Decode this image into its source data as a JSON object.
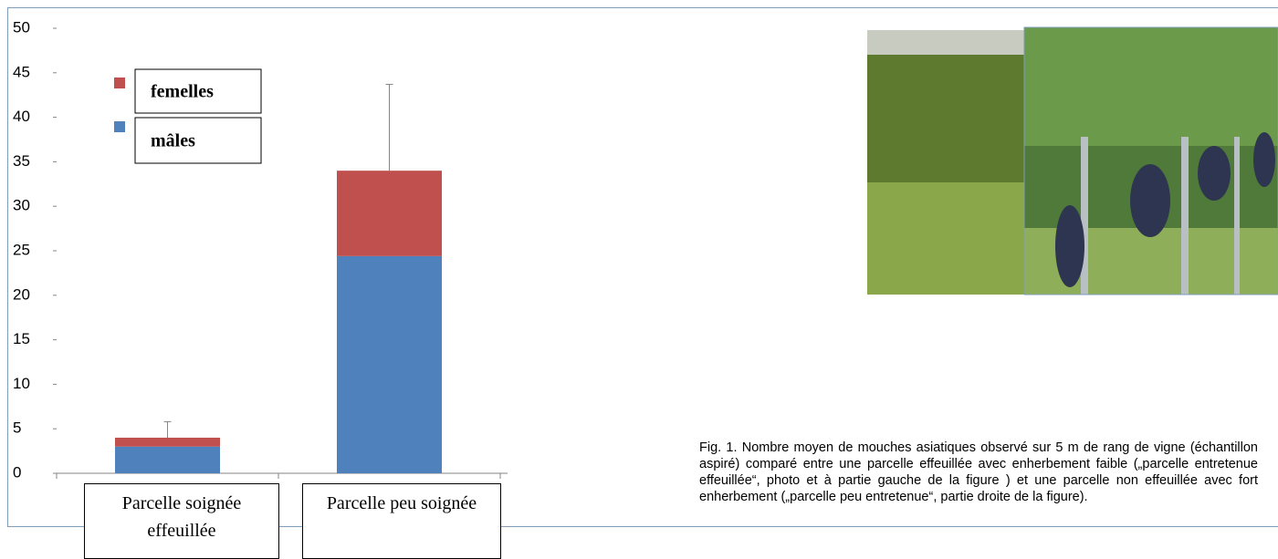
{
  "chart_data": {
    "type": "stacked-bar",
    "categories": [
      "Parcelle soignée effeuillée",
      "Parcelle peu soignée"
    ],
    "series": [
      {
        "name": "mâles",
        "color": "#4f81bd",
        "values": [
          3,
          24.4
        ]
      },
      {
        "name": "femelles",
        "color": "#c0504d",
        "values": [
          1,
          9.6
        ]
      }
    ],
    "errors": [
      1.8,
      9.7
    ],
    "ylim": [
      0,
      50
    ],
    "yticks": [
      0,
      5,
      10,
      15,
      20,
      25,
      30,
      35,
      40,
      45,
      50
    ],
    "caption": "Fig. 1. Nombre moyen de mouches asiatiques observé sur 5 m de rang de vigne (échantillon aspiré) comparé entre une parcelle effeuillée avec enherbement faible („parcelle entretenue effeuillée“, photo et à partie gauche de la figure ) et une parcelle non effeuillée avec fort enherbement („parcelle peu entretenue“, partie droite de la figure)."
  }
}
